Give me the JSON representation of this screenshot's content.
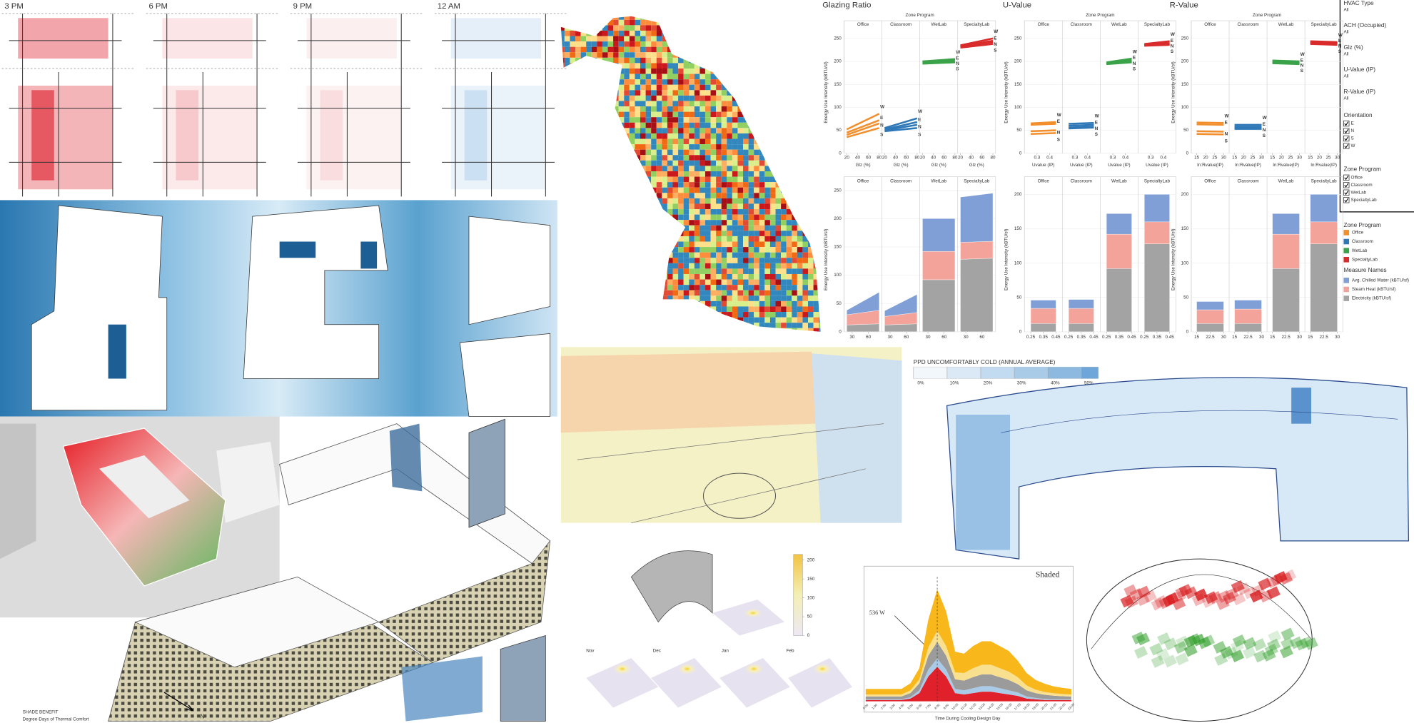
{
  "floor_plans": {
    "times": [
      "3 PM",
      "6 PM",
      "9 PM",
      "12 AM"
    ]
  },
  "dashboard": {
    "facet_title": "Zone Program",
    "y_label": "Energy Use Intensity (kBTU/sf)",
    "programs": [
      {
        "name": "Office",
        "color": "#f28e2b"
      },
      {
        "name": "Classroom",
        "color": "#2e78b7"
      },
      {
        "name": "WetLab",
        "color": "#3aa34a"
      },
      {
        "name": "SpecialtyLab",
        "color": "#d92b2b"
      }
    ],
    "measures": [
      {
        "name": "Avg. Chilled Water (kBTU/sf)",
        "color": "#7f9fd6"
      },
      {
        "name": "Steam Heat (kBTU/sf)",
        "color": "#f4a39a"
      },
      {
        "name": "Electricity (kBTU/sf)",
        "color": "#a3a3a3"
      }
    ],
    "columns": [
      {
        "title": "Glazing Ratio",
        "x_label": "Glz (%)",
        "x_data": [
          20,
          80
        ],
        "xlim": [
          15,
          85
        ],
        "xticks": [
          20,
          40,
          60,
          80
        ],
        "bar_xticks": [
          30,
          60
        ],
        "line_ylim": [
          0,
          265
        ],
        "line_yticks": [
          0,
          50,
          100,
          150,
          200,
          250
        ],
        "bar_ylim": [
          0,
          255
        ],
        "bar_yticks": [
          0,
          50,
          100,
          150,
          200,
          250
        ]
      },
      {
        "title": "U-Value",
        "x_label": "Uvalue (IP)",
        "x_data": [
          0.25,
          0.45
        ],
        "xlim": [
          0.2,
          0.5
        ],
        "xticks": [
          0.3,
          0.4
        ],
        "bar_xticks": [
          0.25,
          0.35,
          0.45
        ],
        "line_ylim": [
          0,
          265
        ],
        "line_yticks": [
          0,
          50,
          100,
          150,
          200,
          250
        ],
        "bar_ylim": [
          0,
          210
        ],
        "bar_yticks": [
          0,
          50,
          100,
          150,
          200
        ]
      },
      {
        "title": "R-Value",
        "x_label": "In:Rvalue(IP)",
        "x_data": [
          15,
          30
        ],
        "xlim": [
          12,
          33
        ],
        "xticks": [
          15,
          20,
          25,
          30
        ],
        "bar_xticks": [
          15,
          22.5,
          30
        ],
        "line_ylim": [
          0,
          265
        ],
        "line_yticks": [
          0,
          50,
          100,
          150,
          200,
          250
        ],
        "bar_ylim": [
          0,
          210
        ],
        "bar_yticks": [
          0,
          50,
          100,
          150,
          200
        ]
      }
    ],
    "lines": [
      [
        [
          {
            "name": "W",
            "values": [
              52,
              86
            ]
          },
          {
            "name": "E",
            "values": [
              45,
              72
            ]
          },
          {
            "name": "N",
            "values": [
              40,
              65
            ]
          },
          {
            "name": "S",
            "values": [
              35,
              55
            ]
          }
        ],
        [
          {
            "name": "W",
            "values": [
              55,
              76
            ]
          },
          {
            "name": "E",
            "values": [
              52,
              68
            ]
          },
          {
            "name": "N",
            "values": [
              50,
              62
            ]
          },
          {
            "name": "S",
            "values": [
              48,
              55
            ]
          }
        ],
        [
          {
            "name": "W",
            "values": [
              200,
              205
            ]
          },
          {
            "name": "E",
            "values": [
              198,
              202
            ]
          },
          {
            "name": "N",
            "values": [
              197,
              200
            ]
          },
          {
            "name": "S",
            "values": [
              195,
              198
            ]
          }
        ],
        [
          {
            "name": "W",
            "values": [
              235,
              250
            ]
          },
          {
            "name": "E",
            "values": [
              233,
              245
            ]
          },
          {
            "name": "N",
            "values": [
              232,
              242
            ]
          },
          {
            "name": "S",
            "values": [
              230,
              238
            ]
          }
        ]
      ],
      [
        [
          {
            "name": "W",
            "values": [
              65,
              68
            ]
          },
          {
            "name": "E",
            "values": [
              62,
              64
            ]
          },
          {
            "name": "N",
            "values": [
              48,
              50
            ]
          },
          {
            "name": "S",
            "values": [
              42,
              44
            ]
          }
        ],
        [
          {
            "name": "W",
            "values": [
              64,
              66
            ]
          },
          {
            "name": "E",
            "values": [
              60,
              62
            ]
          },
          {
            "name": "N",
            "values": [
              56,
              58
            ]
          },
          {
            "name": "S",
            "values": [
              54,
              56
            ]
          }
        ],
        [
          {
            "name": "W",
            "values": [
              198,
              206
            ]
          },
          {
            "name": "E",
            "values": [
              196,
              203
            ]
          },
          {
            "name": "N",
            "values": [
              195,
              200
            ]
          },
          {
            "name": "S",
            "values": [
              194,
              198
            ]
          }
        ],
        [
          {
            "name": "W",
            "values": [
              238,
              244
            ]
          },
          {
            "name": "E",
            "values": [
              236,
              240
            ]
          },
          {
            "name": "N",
            "values": [
              235,
              238
            ]
          },
          {
            "name": "S",
            "values": [
              234,
              236
            ]
          }
        ]
      ],
      [
        [
          {
            "name": "W",
            "values": [
              67,
              66
            ]
          },
          {
            "name": "E",
            "values": [
              63,
              62
            ]
          },
          {
            "name": "N",
            "values": [
              48,
              47
            ]
          },
          {
            "name": "S",
            "values": [
              42,
              41
            ]
          }
        ],
        [
          {
            "name": "W",
            "values": [
              62,
              62
            ]
          },
          {
            "name": "E",
            "values": [
              58,
              58
            ]
          },
          {
            "name": "N",
            "values": [
              55,
              55
            ]
          },
          {
            "name": "S",
            "values": [
              53,
              53
            ]
          }
        ],
        [
          {
            "name": "W",
            "values": [
              202,
              200
            ]
          },
          {
            "name": "E",
            "values": [
              199,
              197
            ]
          },
          {
            "name": "N",
            "values": [
              198,
              196
            ]
          },
          {
            "name": "S",
            "values": [
              196,
              194
            ]
          }
        ],
        [
          {
            "name": "W",
            "values": [
              244,
              242
            ]
          },
          {
            "name": "E",
            "values": [
              242,
              240
            ]
          },
          {
            "name": "N",
            "values": [
              240,
              238
            ]
          },
          {
            "name": "S",
            "values": [
              238,
              236
            ]
          }
        ]
      ]
    ],
    "stacks": [
      [
        [
          [
            8,
            32
          ],
          [
            18,
            24
          ],
          [
            12,
            14
          ]
        ],
        [
          [
            10,
            32
          ],
          [
            15,
            20
          ],
          [
            12,
            14
          ]
        ],
        [
          [
            58,
            58
          ],
          [
            50,
            50
          ],
          [
            92,
            92
          ]
        ],
        [
          [
            80,
            85
          ],
          [
            30,
            30
          ],
          [
            128,
            130
          ]
        ]
      ],
      [
        [
          [
            12,
            12
          ],
          [
            22,
            22
          ],
          [
            12,
            12
          ]
        ],
        [
          [
            13,
            13
          ],
          [
            22,
            22
          ],
          [
            12,
            12
          ]
        ],
        [
          [
            30,
            30
          ],
          [
            50,
            50
          ],
          [
            92,
            92
          ]
        ],
        [
          [
            40,
            40
          ],
          [
            32,
            32
          ],
          [
            128,
            128
          ]
        ]
      ],
      [
        [
          [
            12,
            12
          ],
          [
            20,
            20
          ],
          [
            12,
            12
          ]
        ],
        [
          [
            13,
            13
          ],
          [
            21,
            21
          ],
          [
            12,
            12
          ]
        ],
        [
          [
            30,
            30
          ],
          [
            50,
            50
          ],
          [
            92,
            92
          ]
        ],
        [
          [
            40,
            40
          ],
          [
            32,
            32
          ],
          [
            128,
            128
          ]
        ]
      ]
    ]
  },
  "filters": {
    "items": [
      {
        "title": "HVAC Type",
        "value": "All"
      },
      {
        "title": "ACH (Occupied)",
        "value": "All"
      },
      {
        "title": "Glz (%)",
        "value": "All"
      },
      {
        "title": "U-Value (IP)",
        "value": "All"
      },
      {
        "title": "R-Value (IP)",
        "value": "All"
      }
    ],
    "orientation": {
      "title": "Orientation",
      "options": [
        "E",
        "N",
        "S",
        "W"
      ]
    },
    "zone_program": {
      "title": "Zone Program",
      "options": [
        "Office",
        "Classroom",
        "WetLab",
        "SpecialtyLab"
      ]
    },
    "legend_program_title": "Zone Program",
    "legend_measure_title": "Measure Names"
  },
  "ppd": {
    "title": "PPD UNCOMFORTABLY COLD (ANNUAL AVERAGE)",
    "xlim": [
      0,
      55
    ],
    "ticks": [
      {
        "value": 0,
        "label": "0%"
      },
      {
        "value": 10,
        "label": "10%"
      },
      {
        "value": 20,
        "label": "20%"
      },
      {
        "value": 30,
        "label": "30%"
      },
      {
        "value": 40,
        "label": "40%"
      },
      {
        "value": 50,
        "label": "50%"
      }
    ]
  },
  "solar": {
    "months": [
      "Nov",
      "Dec",
      "Jan",
      "Feb"
    ],
    "ylim": [
      0,
      215
    ],
    "ticks": [
      200,
      150,
      100,
      50,
      0
    ]
  },
  "shaded_chart": {
    "title": "Shaded",
    "annotation": "536 W",
    "x_label": "Time During Cooling Design Day",
    "ylim": [
      0,
      900
    ],
    "categories": [
      "0:00",
      "1:00",
      "2:00",
      "3:00",
      "4:00",
      "5:00",
      "6:00",
      "7:00",
      "8:00",
      "9:00",
      "10:00",
      "11:00",
      "12:00",
      "13:00",
      "14:00",
      "15:00",
      "16:00",
      "17:00",
      "18:00",
      "19:00",
      "20:00",
      "21:00",
      "22:00",
      "23:00"
    ],
    "layers": [
      {
        "color": "#e0202a",
        "values": [
          10,
          10,
          10,
          10,
          10,
          20,
          60,
          180,
          250,
          180,
          60,
          50,
          60,
          70,
          70,
          60,
          50,
          40,
          20,
          15,
          10,
          10,
          10,
          10
        ]
      },
      {
        "color": "#a9cbe8",
        "values": [
          5,
          5,
          5,
          5,
          5,
          10,
          20,
          50,
          60,
          50,
          30,
          30,
          35,
          40,
          40,
          35,
          30,
          25,
          15,
          10,
          8,
          6,
          5,
          5
        ]
      },
      {
        "color": "#9b9b9b",
        "values": [
          20,
          20,
          20,
          20,
          20,
          30,
          50,
          100,
          120,
          100,
          70,
          70,
          80,
          85,
          85,
          80,
          75,
          60,
          45,
          35,
          30,
          25,
          22,
          20
        ]
      },
      {
        "color": "#f8e08e",
        "values": [
          15,
          15,
          15,
          15,
          15,
          20,
          30,
          60,
          80,
          70,
          50,
          55,
          65,
          70,
          70,
          65,
          60,
          50,
          35,
          25,
          20,
          18,
          16,
          15
        ]
      },
      {
        "color": "#f8b71a",
        "values": [
          40,
          40,
          40,
          40,
          40,
          50,
          80,
          200,
          300,
          250,
          150,
          140,
          160,
          170,
          170,
          160,
          150,
          120,
          90,
          70,
          60,
          50,
          45,
          40
        ]
      }
    ]
  },
  "caption": {
    "title": "SHADE BENEFIT",
    "subtitle": "Degree-Days of Thermal Comfort",
    "north": "N"
  }
}
